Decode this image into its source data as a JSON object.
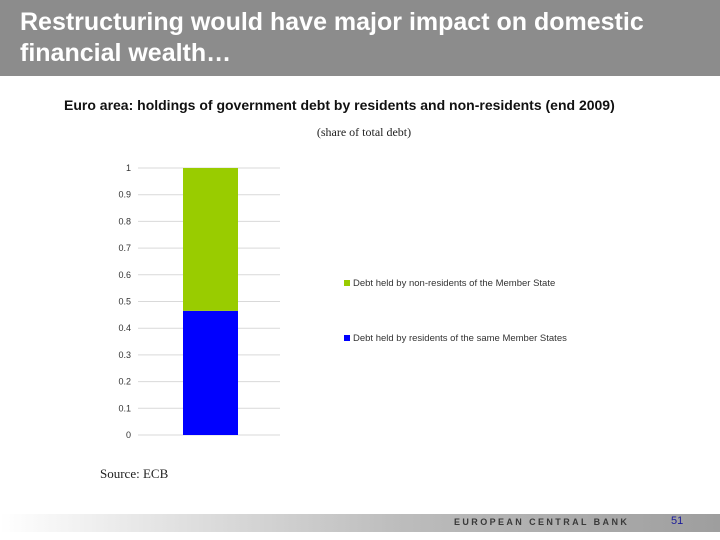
{
  "slide": {
    "title": "Restructuring would have major impact on domestic financial wealth…",
    "source": "Source: ECB",
    "page_number": "51",
    "logo_text": "EUROPEAN CENTRAL BANK"
  },
  "colors": {
    "header_band": "#8c8c8c",
    "non_residents": "#99cc00",
    "residents": "#0000ff"
  },
  "chart_data": {
    "type": "bar",
    "stacked": true,
    "title": "Euro area: holdings of government debt by residents and non-residents (end 2009)",
    "subtitle": "(share of total debt)",
    "categories": [
      ""
    ],
    "series": [
      {
        "name": "Debt held by residents of the same Member States",
        "values": [
          0.465
        ],
        "color": "#0000ff"
      },
      {
        "name": "Debt held by non-residents of the Member State",
        "values": [
          0.535
        ],
        "color": "#99cc00"
      }
    ],
    "ylim": [
      0,
      1
    ],
    "yticks": [
      "0",
      "0.1",
      "0.2",
      "0.3",
      "0.4",
      "0.5",
      "0.6",
      "0.7",
      "0.8",
      "0.9",
      "1"
    ],
    "grid": true,
    "legend_position": "right",
    "legend_order": [
      "Debt held by non-residents of the Member State",
      "Debt held by residents of the same Member States"
    ]
  }
}
